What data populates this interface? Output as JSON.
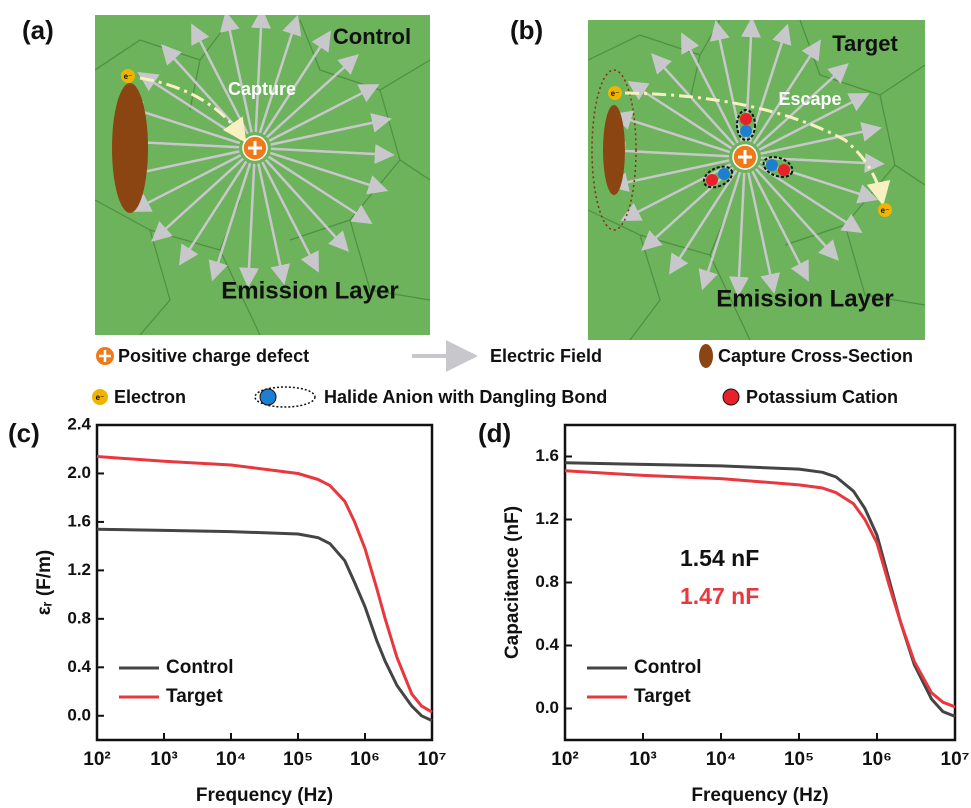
{
  "diagram": {
    "panels": [
      {
        "label": "(a)",
        "title": "Control",
        "process": "Capture",
        "layer": "Emission Layer",
        "electron": "e⁻"
      },
      {
        "label": "(b)",
        "title": "Target",
        "process": "Escape",
        "layer": "Emission Layer",
        "electron": "e⁻"
      }
    ],
    "legend": [
      "Positive charge defect",
      "Electric Field",
      "Capture Cross-Section",
      "Electron",
      "Halide Anion with Dangling Bond",
      "Potassium Cation"
    ]
  },
  "chart_data": [
    {
      "type": "line",
      "panel_label": "(c)",
      "xlabel": "Frequency (Hz)",
      "ylabel": "εᵣ (F/m)",
      "log_x": true,
      "legend": "lower left",
      "x": [
        100,
        1000,
        10000,
        100000,
        200000,
        300000,
        500000,
        700000,
        1000000,
        1500000,
        2000000,
        3000000,
        5000000,
        7000000,
        10000000
      ],
      "xlim": [
        100,
        10000000
      ],
      "xticks": [
        {
          "value": 100,
          "label": "10²"
        },
        {
          "value": 1000,
          "label": "10³"
        },
        {
          "value": 10000,
          "label": "10⁴"
        },
        {
          "value": 100000,
          "label": "10⁵"
        },
        {
          "value": 1000000,
          "label": "10⁶"
        },
        {
          "value": 10000000,
          "label": "10⁷"
        }
      ],
      "ylim": [
        -0.2,
        2.4
      ],
      "yticks": [
        {
          "value": 0,
          "label": "0.0"
        },
        0.4,
        0.8,
        1.2,
        1.6,
        {
          "value": 2,
          "label": "2.0"
        },
        2.4
      ],
      "series": [
        {
          "name": "Control",
          "color": "#444444",
          "values": [
            1.54,
            1.53,
            1.52,
            1.5,
            1.47,
            1.42,
            1.28,
            1.1,
            0.9,
            0.62,
            0.45,
            0.25,
            0.08,
            0.0,
            -0.04
          ]
        },
        {
          "name": "Target",
          "color": "#e8383d",
          "values": [
            2.14,
            2.1,
            2.07,
            2.0,
            1.95,
            1.9,
            1.77,
            1.6,
            1.38,
            1.05,
            0.8,
            0.48,
            0.18,
            0.08,
            0.03
          ]
        }
      ]
    },
    {
      "type": "line",
      "panel_label": "(d)",
      "xlabel": "Frequency (Hz)",
      "ylabel": "Capacitance (nF)",
      "log_x": true,
      "legend": "lower left",
      "x": [
        100,
        1000,
        10000,
        100000,
        200000,
        300000,
        500000,
        700000,
        1000000,
        1500000,
        2000000,
        3000000,
        5000000,
        7000000,
        10000000
      ],
      "xlim": [
        100,
        10000000
      ],
      "xticks": [
        {
          "value": 100,
          "label": "10²"
        },
        {
          "value": 1000,
          "label": "10³"
        },
        {
          "value": 10000,
          "label": "10⁴"
        },
        {
          "value": 100000,
          "label": "10⁵"
        },
        {
          "value": 1000000,
          "label": "10⁶"
        },
        {
          "value": 10000000,
          "label": "10⁷"
        }
      ],
      "ylim": [
        -0.2,
        1.8
      ],
      "yticks": [
        {
          "value": 0,
          "label": "0.0"
        },
        0.4,
        0.8,
        1.2,
        1.6
      ],
      "annotations": [
        {
          "text": "1.54 nF",
          "color": "#111111"
        },
        {
          "text": "1.47 nF",
          "color": "#e8383d"
        }
      ],
      "series": [
        {
          "name": "Control",
          "color": "#444444",
          "values": [
            1.56,
            1.55,
            1.54,
            1.52,
            1.5,
            1.47,
            1.38,
            1.27,
            1.1,
            0.78,
            0.55,
            0.28,
            0.06,
            -0.02,
            -0.05
          ]
        },
        {
          "name": "Target",
          "color": "#e8383d",
          "values": [
            1.51,
            1.48,
            1.46,
            1.42,
            1.4,
            1.37,
            1.3,
            1.2,
            1.05,
            0.75,
            0.55,
            0.3,
            0.1,
            0.04,
            0.01
          ]
        }
      ]
    }
  ]
}
